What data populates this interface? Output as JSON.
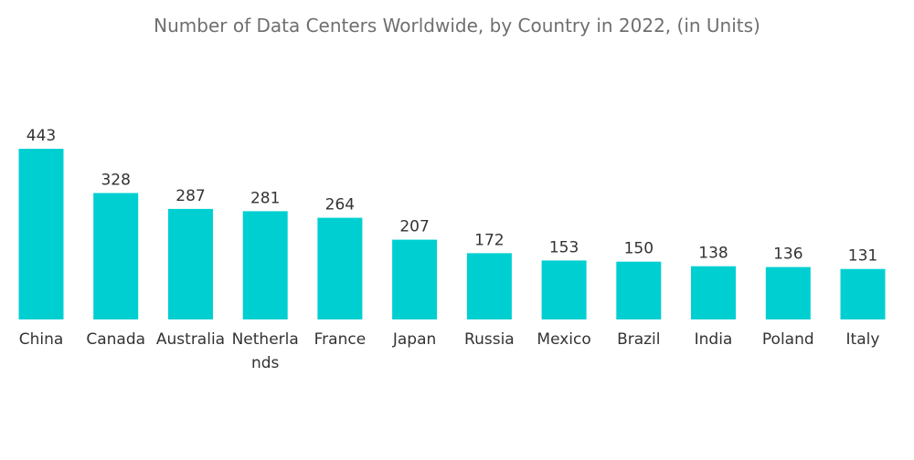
{
  "chart_data": {
    "type": "bar",
    "title": "Number of Data Centers Worldwide, by Country in 2022, (in Units)",
    "categories": [
      "China",
      "Canada",
      "Australia",
      "Netherlands",
      "France",
      "Japan",
      "Russia",
      "Mexico",
      "Brazil",
      "India",
      "Poland",
      "Italy"
    ],
    "category_display": [
      [
        "China"
      ],
      [
        "Canada"
      ],
      [
        "Australia"
      ],
      [
        "Netherla",
        "nds"
      ],
      [
        "France"
      ],
      [
        "Japan"
      ],
      [
        "Russia"
      ],
      [
        "Mexico"
      ],
      [
        "Brazil"
      ],
      [
        "India"
      ],
      [
        "Poland"
      ],
      [
        "Italy"
      ]
    ],
    "values": [
      443,
      328,
      287,
      281,
      264,
      207,
      172,
      153,
      150,
      138,
      136,
      131
    ],
    "xlabel": "",
    "ylabel": "",
    "ylim": [
      0,
      443
    ],
    "grid": false,
    "legend": "none",
    "bar_color": "#00cfd1"
  }
}
